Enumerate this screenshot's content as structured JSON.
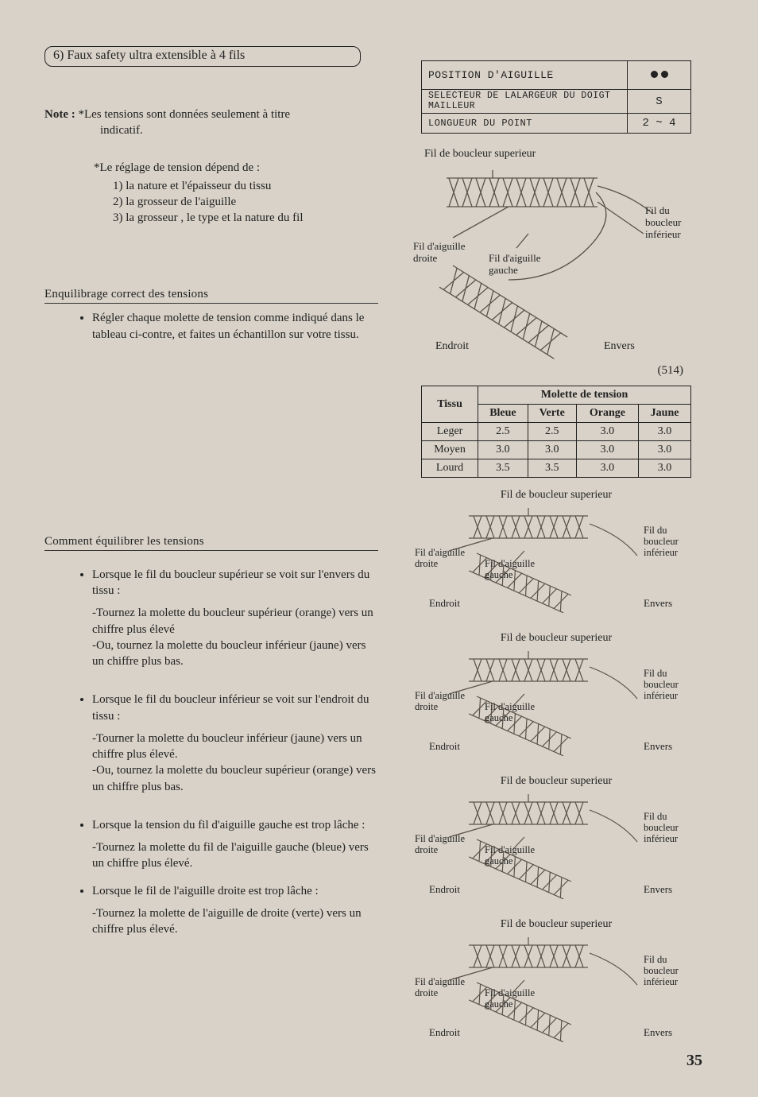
{
  "title_number": "6)",
  "title_text": "Faux safety ultra extensible à 4 fils",
  "note_label": "Note :",
  "note_text": "*Les tensions sont données seulement à titre indicatif.",
  "reglage_title": "*Le réglage de tension dépend de :",
  "reglage_items": [
    "1) la nature et l'épaisseur du tissu",
    "2) la grosseur de l'aiguille",
    "3) la grosseur , le type et la nature du fil"
  ],
  "section_balance": "Enquilibrage correct des tensions",
  "balance_bullet": "Régler chaque molette de tension comme indiqué dans le tableau ci-contre, et faites un échantillon sur votre tissu.",
  "section_how": "Comment équilibrer les tensions",
  "how_bullets": [
    {
      "lead": "Lorsque le fil du boucleur supérieur se voit sur l'envers du tissu :",
      "subs": [
        "-Tournez la molette du boucleur supérieur (orange) vers un chiffre plus élevé",
        "-Ou, tournez la molette du boucleur inférieur (jaune) vers un chiffre plus bas."
      ]
    },
    {
      "lead": "Lorsque le fil du boucleur inférieur se voit sur l'endroit du tissu :",
      "subs": [
        "-Tourner la molette du boucleur inférieur (jaune) vers un chiffre plus élevé.",
        "-Ou, tournez la molette du boucleur supérieur (orange) vers un chiffre plus bas."
      ]
    },
    {
      "lead": "Lorsque la tension du fil d'aiguille gauche est trop lâche :",
      "subs": [
        "-Tournez la molette du fil de l'aiguille gauche (bleue) vers un chiffre plus élevé."
      ]
    },
    {
      "lead": "Lorsque le fil de l'aiguille droite est trop lâche :",
      "subs": [
        "-Tournez la molette de l'aiguille de droite (verte) vers un chiffre plus élevé."
      ]
    }
  ],
  "settings": {
    "rows": [
      {
        "label": "POSITION D'AIGUILLE",
        "value_type": "dots"
      },
      {
        "label": "SELECTEUR DE LALARGEUR DU DOIGT MAILLEUR",
        "value": "S"
      },
      {
        "label": "LONGUEUR DU POINT",
        "value": "2 ~ 4"
      }
    ]
  },
  "diagram_labels": {
    "top": "Fil de boucleur superieur",
    "right_top": "Fil du",
    "right_mid": "boucleur",
    "right_bot": "inférieur",
    "left_needle": "Fil d'aiguille",
    "left_needle2": "droite",
    "mid_needle": "Fil d'aiguille",
    "mid_needle2": "gauche",
    "endroit": "Endroit",
    "envers": "Envers",
    "fig": "(514)"
  },
  "tension_table": {
    "header_tissu": "Tissu",
    "header_group": "Molette de tension",
    "cols": [
      "Bleue",
      "Verte",
      "Orange",
      "Jaune"
    ],
    "rows": [
      {
        "label": "Leger",
        "vals": [
          "2.5",
          "2.5",
          "3.0",
          "3.0"
        ]
      },
      {
        "label": "Moyen",
        "vals": [
          "3.0",
          "3.0",
          "3.0",
          "3.0"
        ]
      },
      {
        "label": "Lourd",
        "vals": [
          "3.5",
          "3.5",
          "3.0",
          "3.0"
        ]
      }
    ]
  },
  "small_caption": "Fil de boucleur superieur",
  "page_num": "35",
  "colors": {
    "ink": "#222222",
    "bg": "#d8d2c8",
    "stitch_light": "#bcb4a6",
    "stitch_dark": "#5a5248"
  }
}
